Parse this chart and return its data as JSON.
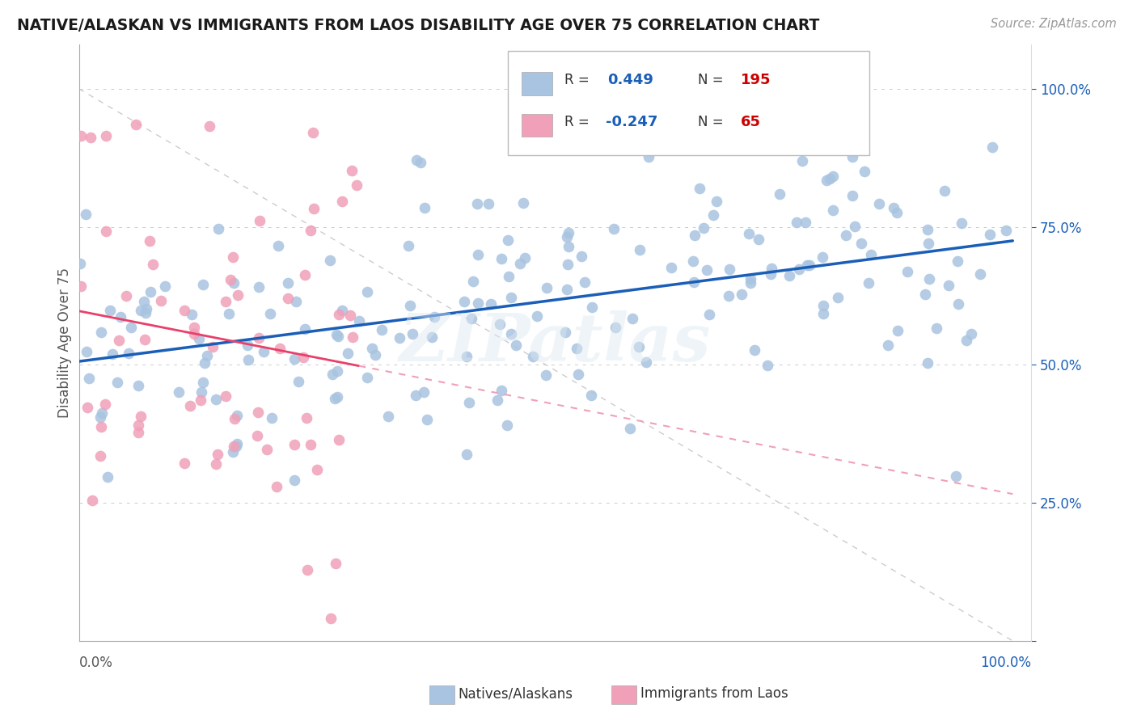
{
  "title": "NATIVE/ALASKAN VS IMMIGRANTS FROM LAOS DISABILITY AGE OVER 75 CORRELATION CHART",
  "source": "Source: ZipAtlas.com",
  "ylabel": "Disability Age Over 75",
  "r_native": 0.449,
  "n_native": 195,
  "r_laos": -0.247,
  "n_laos": 65,
  "blue_color": "#a8c4e0",
  "pink_color": "#f0a0b8",
  "blue_line_color": "#1a5eb8",
  "pink_line_color": "#e8406a",
  "pink_dash_color": "#f0a0b8",
  "watermark": "ZIPatlas",
  "background_color": "#ffffff",
  "grid_color": "#cccccc",
  "title_color": "#1a1a1a",
  "legend_r_color": "#1a5eb8",
  "legend_n_color": "#cc0000",
  "ytick_right": [
    "",
    "25.0%",
    "50.0%",
    "75.0%",
    "100.0%"
  ],
  "ytick_positions": [
    0.0,
    0.25,
    0.5,
    0.75,
    1.0
  ]
}
